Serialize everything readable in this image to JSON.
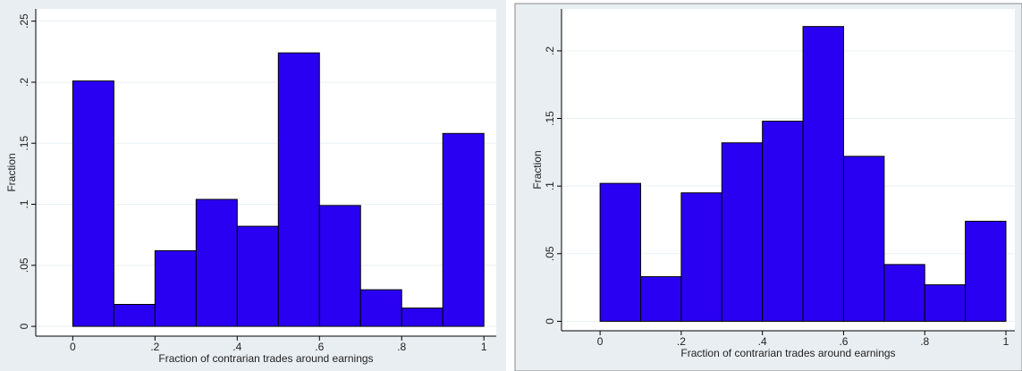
{
  "chart_data": [
    {
      "type": "histogram",
      "xlabel": "Fraction of contrarian trades around earnings",
      "ylabel": "Fraction",
      "bins": [
        0,
        0.1,
        0.2,
        0.3,
        0.4,
        0.5,
        0.6,
        0.7,
        0.8,
        0.9,
        1
      ],
      "values": [
        0.201,
        0.018,
        0.062,
        0.104,
        0.082,
        0.224,
        0.099,
        0.03,
        0.015,
        0.158
      ],
      "color": "#2a00f2",
      "xlim": [
        -0.09,
        1.03
      ],
      "ylim": [
        -0.008,
        0.26
      ],
      "xticks": [
        0,
        {
          "value": 0.2,
          "label": ".2"
        },
        {
          "value": 0.4,
          "label": ".4"
        },
        {
          "value": 0.6,
          "label": ".6"
        },
        {
          "value": 0.8,
          "label": ".8"
        },
        1
      ],
      "yticks": [
        0,
        {
          "value": 0.05,
          "label": ".05"
        },
        {
          "value": 0.1,
          "label": ".1"
        },
        {
          "value": 0.15,
          "label": ".15"
        },
        {
          "value": 0.2,
          "label": ".2"
        },
        {
          "value": 0.25,
          "label": ".25"
        }
      ],
      "grid": true
    },
    {
      "type": "histogram",
      "xlabel": "Fraction of contrarian trades around earnings",
      "ylabel": "Fraction",
      "bins": [
        0,
        0.1,
        0.2,
        0.3,
        0.4,
        0.5,
        0.6,
        0.7,
        0.8,
        0.9,
        1
      ],
      "values": [
        0.102,
        0.033,
        0.095,
        0.132,
        0.148,
        0.218,
        0.122,
        0.042,
        0.027,
        0.074
      ],
      "color": "#2a00f2",
      "xlim": [
        -0.095,
        1.022
      ],
      "ylim": [
        -0.007,
        0.231
      ],
      "xticks": [
        0,
        {
          "value": 0.2,
          "label": ".2"
        },
        {
          "value": 0.4,
          "label": ".4"
        },
        {
          "value": 0.6,
          "label": ".6"
        },
        {
          "value": 0.8,
          "label": ".8"
        },
        1
      ],
      "yticks": [
        0,
        {
          "value": 0.05,
          "label": ".05"
        },
        {
          "value": 0.1,
          "label": ".1"
        },
        {
          "value": 0.15,
          "label": ".15"
        },
        {
          "value": 0.2,
          "label": ".2"
        }
      ],
      "grid": true
    }
  ]
}
